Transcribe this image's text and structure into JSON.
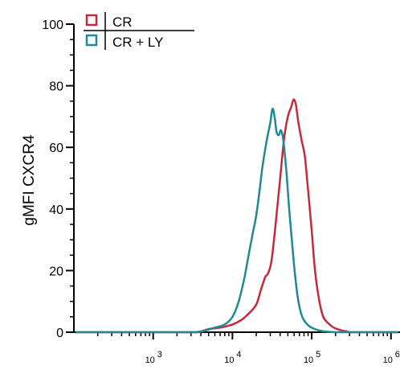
{
  "chart_data": {
    "type": "line",
    "title": "",
    "ylabel": "gMFI CXCR4",
    "xlabel": "",
    "x_scale": "log",
    "xlim": [
      100,
      1300000
    ],
    "ylim": [
      0,
      100
    ],
    "y_ticks": [
      0,
      20,
      40,
      60,
      80,
      100
    ],
    "y_tick_labels": [
      "0",
      "20",
      "40",
      "60",
      "80",
      "100"
    ],
    "x_ticks": [
      1000,
      10000,
      100000,
      1000000
    ],
    "x_tick_labels": [
      {
        "base": "10",
        "exp": "3"
      },
      {
        "base": "10",
        "exp": "4"
      },
      {
        "base": "10",
        "exp": "5"
      },
      {
        "base": "10",
        "exp": "6"
      }
    ],
    "grid": false,
    "legend_position": "top-left",
    "series": [
      {
        "name": "CR",
        "color": "#c62a3a",
        "points": [
          [
            3800,
            0
          ],
          [
            5000,
            1
          ],
          [
            7000,
            1.5
          ],
          [
            10000,
            2.5
          ],
          [
            13000,
            4
          ],
          [
            16000,
            6
          ],
          [
            20000,
            9
          ],
          [
            23000,
            14
          ],
          [
            26000,
            18
          ],
          [
            28000,
            19
          ],
          [
            31000,
            23
          ],
          [
            35000,
            35
          ],
          [
            40000,
            50
          ],
          [
            45000,
            63
          ],
          [
            50000,
            70
          ],
          [
            55000,
            73
          ],
          [
            59000,
            75.5
          ],
          [
            63000,
            74
          ],
          [
            68000,
            68
          ],
          [
            75000,
            62
          ],
          [
            82000,
            57
          ],
          [
            90000,
            46
          ],
          [
            100000,
            33
          ],
          [
            110000,
            20
          ],
          [
            125000,
            10
          ],
          [
            140000,
            5
          ],
          [
            160000,
            3
          ],
          [
            190000,
            1.5
          ],
          [
            230000,
            0.7
          ],
          [
            300000,
            0
          ]
        ]
      },
      {
        "name": "CR + LY",
        "color": "#1f8a94",
        "points": [
          [
            3500,
            0
          ],
          [
            4500,
            0.5
          ],
          [
            6000,
            1.5
          ],
          [
            8000,
            2.5
          ],
          [
            10000,
            5
          ],
          [
            12000,
            10
          ],
          [
            14000,
            17
          ],
          [
            16000,
            25
          ],
          [
            18000,
            32
          ],
          [
            20000,
            38
          ],
          [
            22000,
            46
          ],
          [
            24000,
            54
          ],
          [
            27000,
            62
          ],
          [
            30000,
            68
          ],
          [
            32000,
            72.5
          ],
          [
            34000,
            70
          ],
          [
            36000,
            65
          ],
          [
            38500,
            64
          ],
          [
            41000,
            65.5
          ],
          [
            44000,
            62
          ],
          [
            48000,
            52
          ],
          [
            52000,
            40
          ],
          [
            57000,
            28
          ],
          [
            62000,
            18
          ],
          [
            68000,
            10
          ],
          [
            76000,
            5
          ],
          [
            88000,
            2.5
          ],
          [
            105000,
            1.2
          ],
          [
            140000,
            0.3
          ],
          [
            200000,
            0
          ]
        ]
      }
    ]
  }
}
